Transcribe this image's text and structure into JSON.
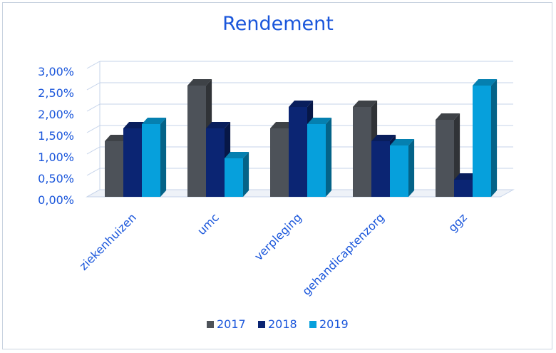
{
  "chart_data": {
    "type": "bar",
    "title": "Rendement",
    "categories": [
      "ziekenhuizen",
      "umc",
      "verpleging",
      "gehandicaptenzorg",
      "ggz"
    ],
    "series": [
      {
        "name": "2017",
        "values": [
          1.3,
          2.6,
          1.6,
          2.1,
          1.8
        ],
        "color": "#4d5259"
      },
      {
        "name": "2018",
        "values": [
          1.6,
          1.6,
          2.1,
          1.3,
          0.4
        ],
        "color": "#0b2573"
      },
      {
        "name": "2019",
        "values": [
          1.7,
          0.9,
          1.7,
          1.2,
          2.6
        ],
        "color": "#06a0dc"
      }
    ],
    "yticks": [
      "0,00%",
      "0,50%",
      "1,00%",
      "1,50%",
      "2,00%",
      "2,50%",
      "3,00%"
    ],
    "ylim": [
      0,
      3
    ],
    "grid": true,
    "legend": "bottom",
    "style": "3d-column"
  }
}
